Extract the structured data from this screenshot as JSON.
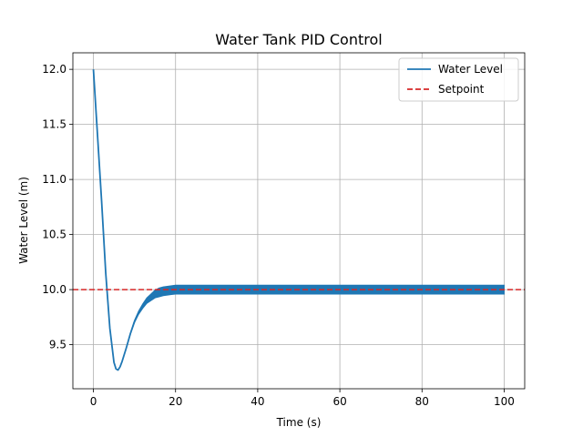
{
  "chart_data": {
    "type": "line",
    "title": "Water Tank PID Control",
    "xlabel": "Time (s)",
    "ylabel": "Water Level (m)",
    "xlim": [
      -5,
      105
    ],
    "ylim": [
      9.1,
      12.15
    ],
    "xticks": [
      0,
      20,
      40,
      60,
      80,
      100
    ],
    "yticks": [
      9.5,
      10.0,
      10.5,
      11.0,
      11.5,
      12.0
    ],
    "xtick_labels": [
      "0",
      "20",
      "40",
      "60",
      "80",
      "100"
    ],
    "ytick_labels": [
      "9.5",
      "10.0",
      "10.5",
      "11.0",
      "11.5",
      "12.0"
    ],
    "grid": true,
    "legend_position": "top-right",
    "series": [
      {
        "name": "Water Level",
        "color": "#1f77b4",
        "style": "solid",
        "x": [
          0,
          1,
          2,
          3,
          4,
          5,
          5.5,
          6,
          6.5,
          7,
          8,
          9,
          10,
          11,
          12,
          13,
          14,
          15,
          16,
          17,
          18,
          19,
          20,
          22,
          25,
          30,
          40,
          50,
          60,
          70,
          80,
          90,
          100
        ],
        "y": [
          12.0,
          11.4,
          10.8,
          10.15,
          9.65,
          9.34,
          9.28,
          9.27,
          9.3,
          9.35,
          9.47,
          9.6,
          9.71,
          9.79,
          9.85,
          9.9,
          9.93,
          9.96,
          9.975,
          9.985,
          9.99,
          9.995,
          10.0,
          10.0,
          10.0,
          10.0,
          10.0,
          10.0,
          10.0,
          10.0,
          10.0,
          10.0,
          10.0
        ],
        "band_halfwidth": 0.04
      },
      {
        "name": "Setpoint",
        "color": "#d62728",
        "style": "dashed",
        "y_constant": 10.0
      }
    ]
  }
}
